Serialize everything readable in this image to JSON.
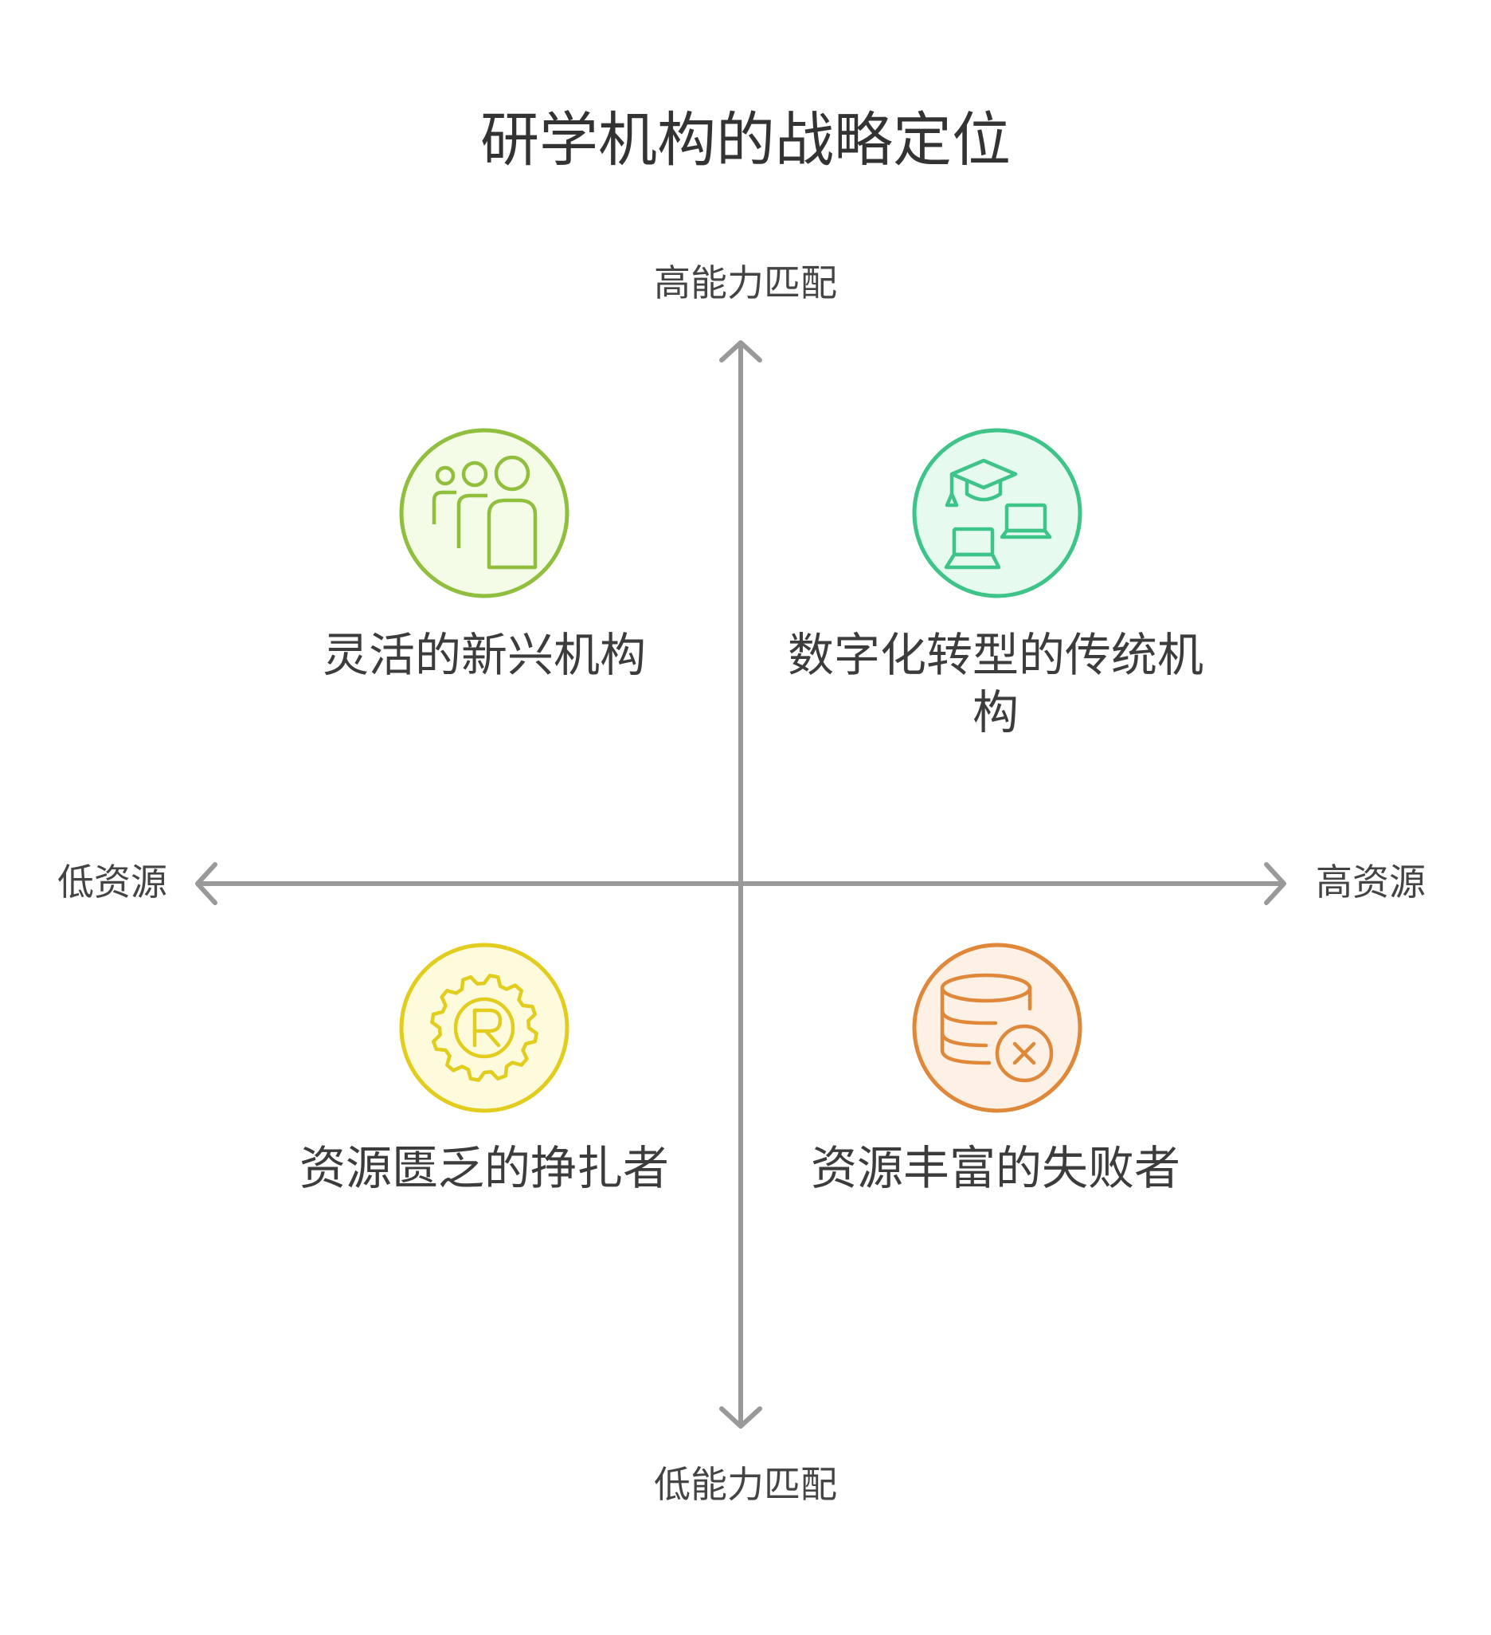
{
  "title": "研学机构的战略定位",
  "axes": {
    "y_high": "高能力匹配",
    "y_low": "低能力匹配",
    "x_low": "低资源",
    "x_high": "高资源"
  },
  "quadrants": {
    "top_left": {
      "label": "灵活的新兴机构",
      "icon": "people-group-icon",
      "color": "#8fbf3c",
      "fill": "#f4fbe6"
    },
    "top_right": {
      "label": "数字化转型的传统机构",
      "icon": "graduation-laptop-icon",
      "color": "#3ec488",
      "fill": "#e6faf0"
    },
    "bottom_left": {
      "label": "资源匮乏的挣扎者",
      "icon": "registered-gear-icon",
      "color": "#e2cc1e",
      "fill": "#fdfbdc"
    },
    "bottom_right": {
      "label": "资源丰富的失败者",
      "icon": "database-error-icon",
      "color": "#e0883a",
      "fill": "#fdf0e4"
    }
  },
  "axis_color": "#999999"
}
